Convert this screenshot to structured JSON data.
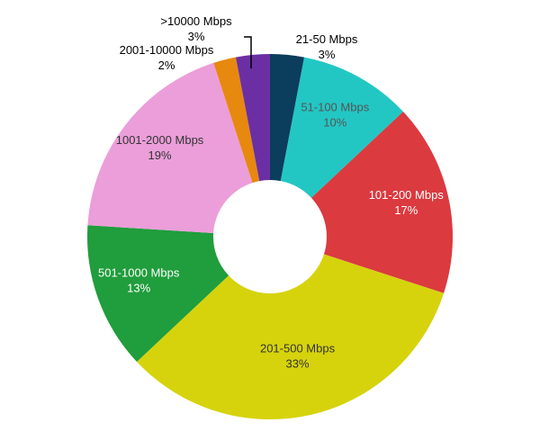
{
  "chart_data": {
    "type": "pie",
    "title": "",
    "categories": [
      "21-50 Mbps",
      "51-100 Mbps",
      "101-200 Mbps",
      "201-500 Mbps",
      "501-1000 Mbps",
      "1001-2000 Mbps",
      "2001-10000 Mbps",
      ">10000 Mbps"
    ],
    "values": [
      3,
      10,
      17,
      33,
      13,
      19,
      2,
      3
    ],
    "value_labels": [
      "3%",
      "10%",
      "17%",
      "33%",
      "13%",
      "19%",
      "2%",
      "3%"
    ],
    "colors": [
      "#0b3d5c",
      "#22c7c4",
      "#db3a3f",
      "#d6d30d",
      "#209d3c",
      "#eb9ed9",
      "#e7880f",
      "#6b2fa3"
    ],
    "label_colors": [
      "#000000",
      "#555555",
      "#ffffff",
      "#333333",
      "#ffffff",
      "#333333",
      "#000000",
      "#000000"
    ],
    "donut": true,
    "legend": "none"
  }
}
